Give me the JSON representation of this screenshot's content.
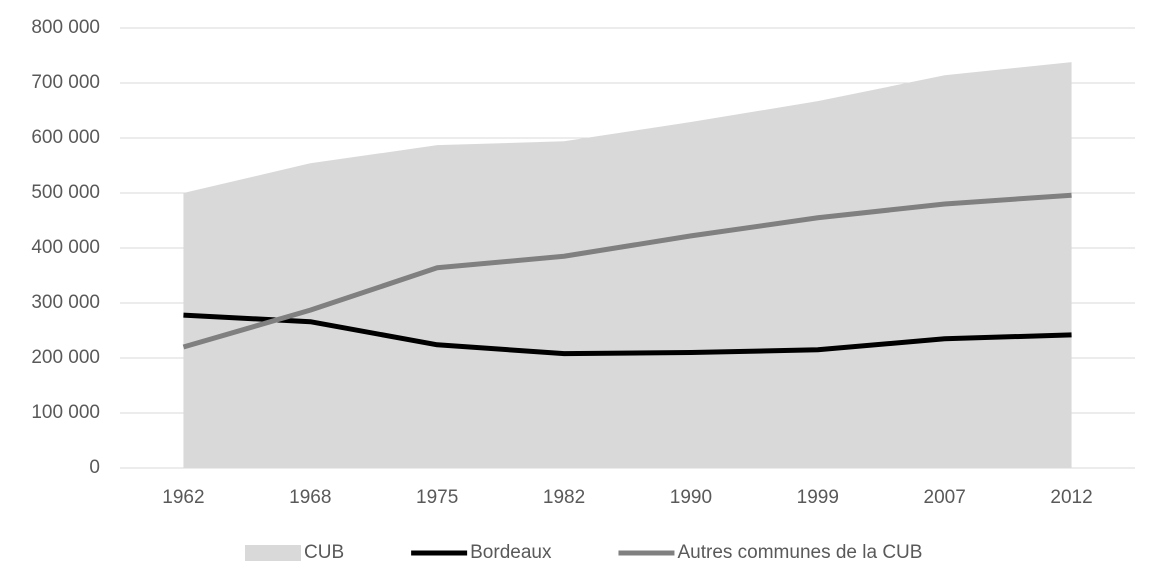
{
  "chart_data": {
    "type": "line",
    "categories": [
      "1962",
      "1968",
      "1975",
      "1982",
      "1990",
      "1999",
      "2007",
      "2012"
    ],
    "series": [
      {
        "name": "CUB",
        "type": "area",
        "color": "#d9d9d9",
        "values": [
          500000,
          554000,
          587000,
          594000,
          629000,
          667000,
          714000,
          738000
        ]
      },
      {
        "name": "Bordeaux",
        "type": "line",
        "color": "#000000",
        "values": [
          278000,
          266000,
          224000,
          208000,
          210000,
          215000,
          235000,
          242000
        ]
      },
      {
        "name": "Autres communes de la CUB",
        "type": "line",
        "color": "#808080",
        "values": [
          220000,
          287000,
          364000,
          385000,
          422000,
          455000,
          480000,
          496000
        ]
      }
    ],
    "ylim": [
      0,
      800000
    ],
    "yticks": [
      0,
      {
        "value": 100000,
        "label": "100 000"
      },
      {
        "value": 200000,
        "label": "200 000"
      },
      {
        "value": 300000,
        "label": "300 000"
      },
      {
        "value": 400000,
        "label": "400 000"
      },
      {
        "value": 500000,
        "label": "500 000"
      },
      {
        "value": 600000,
        "label": "600 000"
      },
      {
        "value": 700000,
        "label": "700 000"
      },
      {
        "value": 800000,
        "label": "800 000"
      }
    ],
    "grid": true,
    "legend": "bottom"
  }
}
